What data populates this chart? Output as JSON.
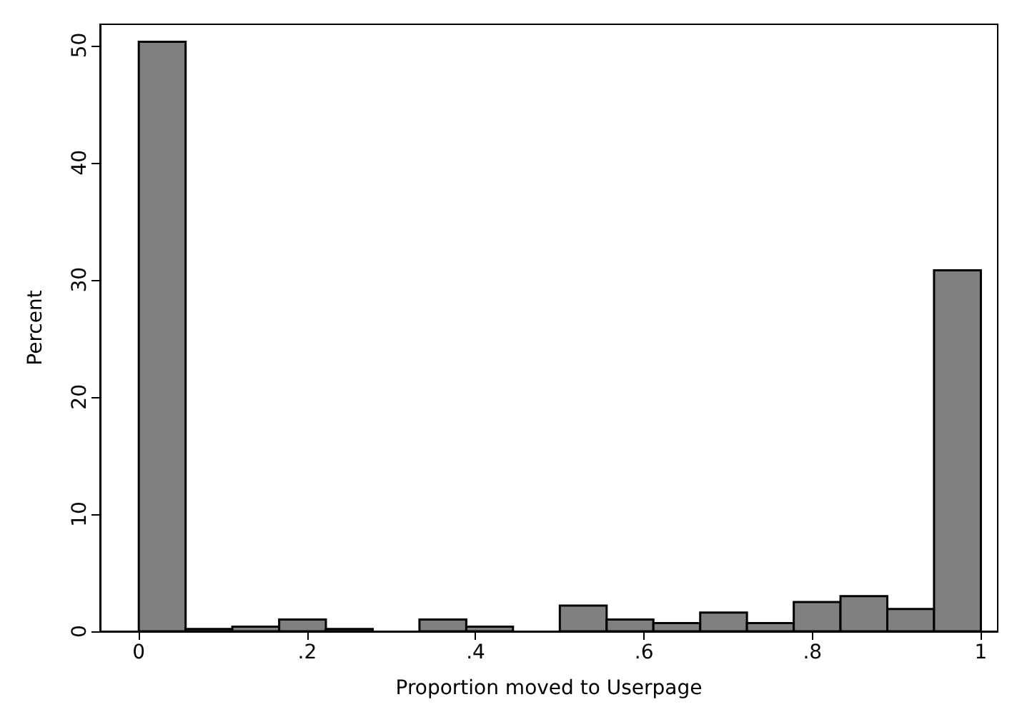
{
  "chart_data": {
    "type": "histogram",
    "xlabel": "Proportion moved to Userpage",
    "ylabel": "Percent",
    "bins": [
      0,
      0.0556,
      0.1111,
      0.1667,
      0.2222,
      0.2778,
      0.3333,
      0.3889,
      0.4444,
      0.5,
      0.5556,
      0.6111,
      0.6667,
      0.7222,
      0.7778,
      0.8333,
      0.8889,
      0.9444,
      1
    ],
    "values": [
      50.3,
      0.2,
      0.4,
      1.0,
      0.2,
      0,
      1.0,
      0.4,
      0,
      2.2,
      1.0,
      0.7,
      1.6,
      0.7,
      2.5,
      3.0,
      1.9,
      30.8
    ],
    "color": "#808080",
    "xlim": [
      -0.046,
      1.02
    ],
    "xticks": [
      0,
      {
        "value": 0.2,
        "label": ".2"
      },
      {
        "value": 0.4,
        "label": ".4"
      },
      {
        "value": 0.6,
        "label": ".6"
      },
      {
        "value": 0.8,
        "label": ".8"
      },
      1
    ],
    "ylim": [
      0,
      51.8
    ],
    "yticks": [
      0,
      10,
      20,
      30,
      40,
      50
    ],
    "grid": false
  }
}
